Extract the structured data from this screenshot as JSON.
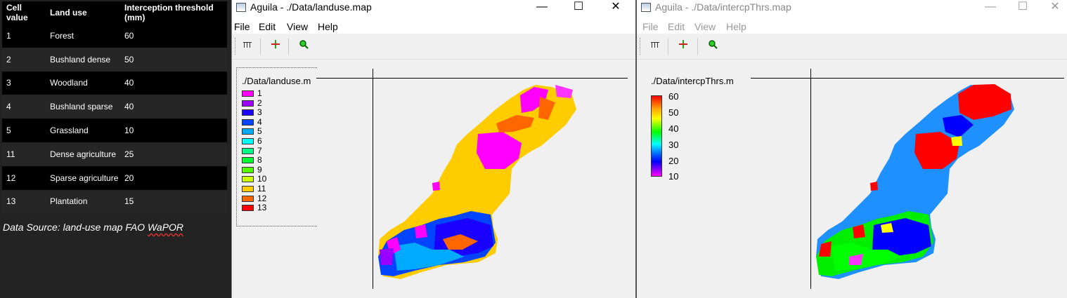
{
  "table": {
    "headers": [
      "Cell value",
      "Land use",
      "Interception threshold (mm)"
    ],
    "rows": [
      [
        "1",
        "Forest",
        "60"
      ],
      [
        "2",
        "Bushland dense",
        "50"
      ],
      [
        "3",
        "Woodland",
        "40"
      ],
      [
        "4",
        "Bushland sparse",
        "40"
      ],
      [
        "5",
        "Grassland",
        "10"
      ],
      [
        "11",
        "Dense agriculture",
        "25"
      ],
      [
        "12",
        "Sparse agriculture",
        "20"
      ],
      [
        "13",
        "Plantation",
        "15"
      ]
    ]
  },
  "data_source": {
    "prefix": "Data Source: land-use map FAO ",
    "wavy": "WaPOR"
  },
  "window1": {
    "title": "Aguila - ./Data/landuse.map",
    "menu": [
      "File",
      "Edit",
      "View",
      "Help"
    ],
    "controls": {
      "minimize": "—",
      "maximize": "☐",
      "close": "✕"
    },
    "legend_title": "./Data/landuse.m",
    "legend": [
      {
        "label": "1",
        "color": "#ff00ff"
      },
      {
        "label": "2",
        "color": "#9900ff"
      },
      {
        "label": "3",
        "color": "#1a00ff"
      },
      {
        "label": "4",
        "color": "#0044ff"
      },
      {
        "label": "5",
        "color": "#00aaff"
      },
      {
        "label": "6",
        "color": "#00ffff"
      },
      {
        "label": "7",
        "color": "#00ff88"
      },
      {
        "label": "8",
        "color": "#00ff33"
      },
      {
        "label": "9",
        "color": "#55ff00"
      },
      {
        "label": "10",
        "color": "#ccff00"
      },
      {
        "label": "11",
        "color": "#ffcc00"
      },
      {
        "label": "12",
        "color": "#ff6600"
      },
      {
        "label": "13",
        "color": "#ff0000"
      }
    ]
  },
  "window2": {
    "title": "Aguila - ./Data/intercpThrs.map",
    "menu": [
      "File",
      "Edit",
      "View",
      "Help"
    ],
    "controls": {
      "minimize": "—",
      "maximize": "☐",
      "close": "✕"
    },
    "legend_title": "./Data/intercpThrs.m",
    "colorbar_labels": [
      "60",
      "50",
      "40",
      "30",
      "20",
      "10"
    ]
  },
  "toolbar_icons": [
    "columns-icon",
    "crosshair-icon",
    "zoom-icon"
  ]
}
